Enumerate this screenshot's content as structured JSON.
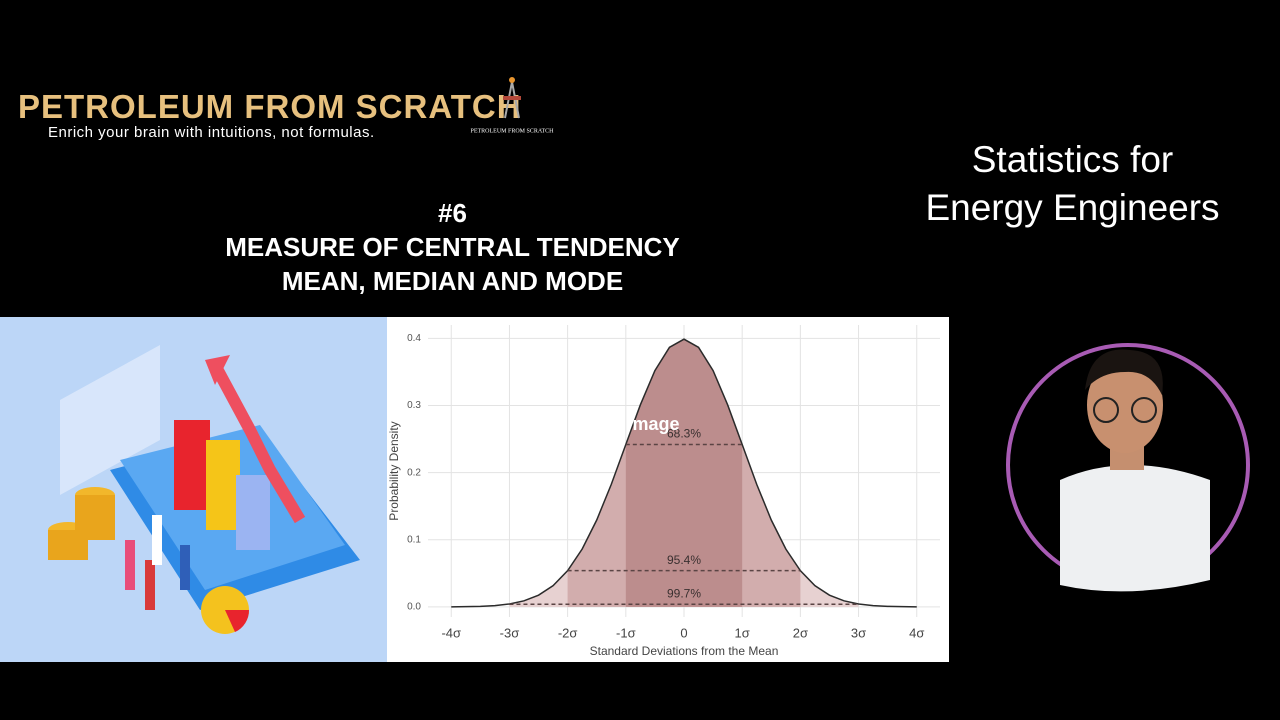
{
  "header": {
    "brand": "PETROLEUM FROM SCRATCH",
    "tagline": "Enrich your brain with intuitions, not formulas.",
    "logo_text": "PETROLEUM FROM SCRATCH"
  },
  "episode": {
    "number": "#6",
    "title_line1": "MEASURE OF CENTRAL TENDENCY",
    "title_line2": "MEAN, MEDIAN AND MODE"
  },
  "series_title": [
    "Statistics for",
    "Energy Engineers"
  ],
  "overlay_text": "mage",
  "chart_data": {
    "type": "line",
    "xlabel": "Standard Deviations from the Mean",
    "ylabel": "Probability Density",
    "x": [
      -4,
      -3.75,
      -3.5,
      -3.25,
      -3,
      -2.75,
      -2.5,
      -2.25,
      -2,
      -1.75,
      -1.5,
      -1.25,
      -1,
      -0.75,
      -0.5,
      -0.25,
      0,
      0.25,
      0.5,
      0.75,
      1,
      1.25,
      1.5,
      1.75,
      2,
      2.25,
      2.5,
      2.75,
      3,
      3.25,
      3.5,
      3.75,
      4
    ],
    "values": [
      0.0001,
      0.0004,
      0.0009,
      0.002,
      0.0044,
      0.0091,
      0.0175,
      0.0317,
      0.054,
      0.0863,
      0.1295,
      0.1826,
      0.242,
      0.3011,
      0.3521,
      0.3867,
      0.3989,
      0.3867,
      0.3521,
      0.3011,
      0.242,
      0.1826,
      0.1295,
      0.0863,
      0.054,
      0.0317,
      0.0175,
      0.0091,
      0.0044,
      0.002,
      0.0009,
      0.0004,
      0.0001
    ],
    "color": "#2b2b2b",
    "xlim": [
      -4.4,
      4.4
    ],
    "ylim": [
      -0.015,
      0.42
    ],
    "xticks": [
      {
        "value": -4,
        "label": "-4σ"
      },
      {
        "value": -3,
        "label": "-3σ"
      },
      {
        "value": -2,
        "label": "-2σ"
      },
      {
        "value": -1,
        "label": "-1σ"
      },
      0,
      {
        "value": 1,
        "label": "1σ"
      },
      {
        "value": 2,
        "label": "2σ"
      },
      {
        "value": 3,
        "label": "3σ"
      },
      {
        "value": 4,
        "label": "4σ"
      }
    ],
    "yticks": [
      {
        "value": 0,
        "label": "0.0"
      },
      0.1,
      0.2,
      0.3,
      0.4
    ],
    "grid": true,
    "bands": [
      {
        "label": "68.3%",
        "from": -1,
        "to": 1,
        "level": 0.242,
        "color": "#b98a8a"
      },
      {
        "label": "95.4%",
        "from": -2,
        "to": 2,
        "level": 0.054,
        "color": "#cfa9a9"
      },
      {
        "label": "99.7%",
        "from": -3,
        "to": 3,
        "level": 0.004,
        "color": "#e4cccc"
      }
    ]
  }
}
